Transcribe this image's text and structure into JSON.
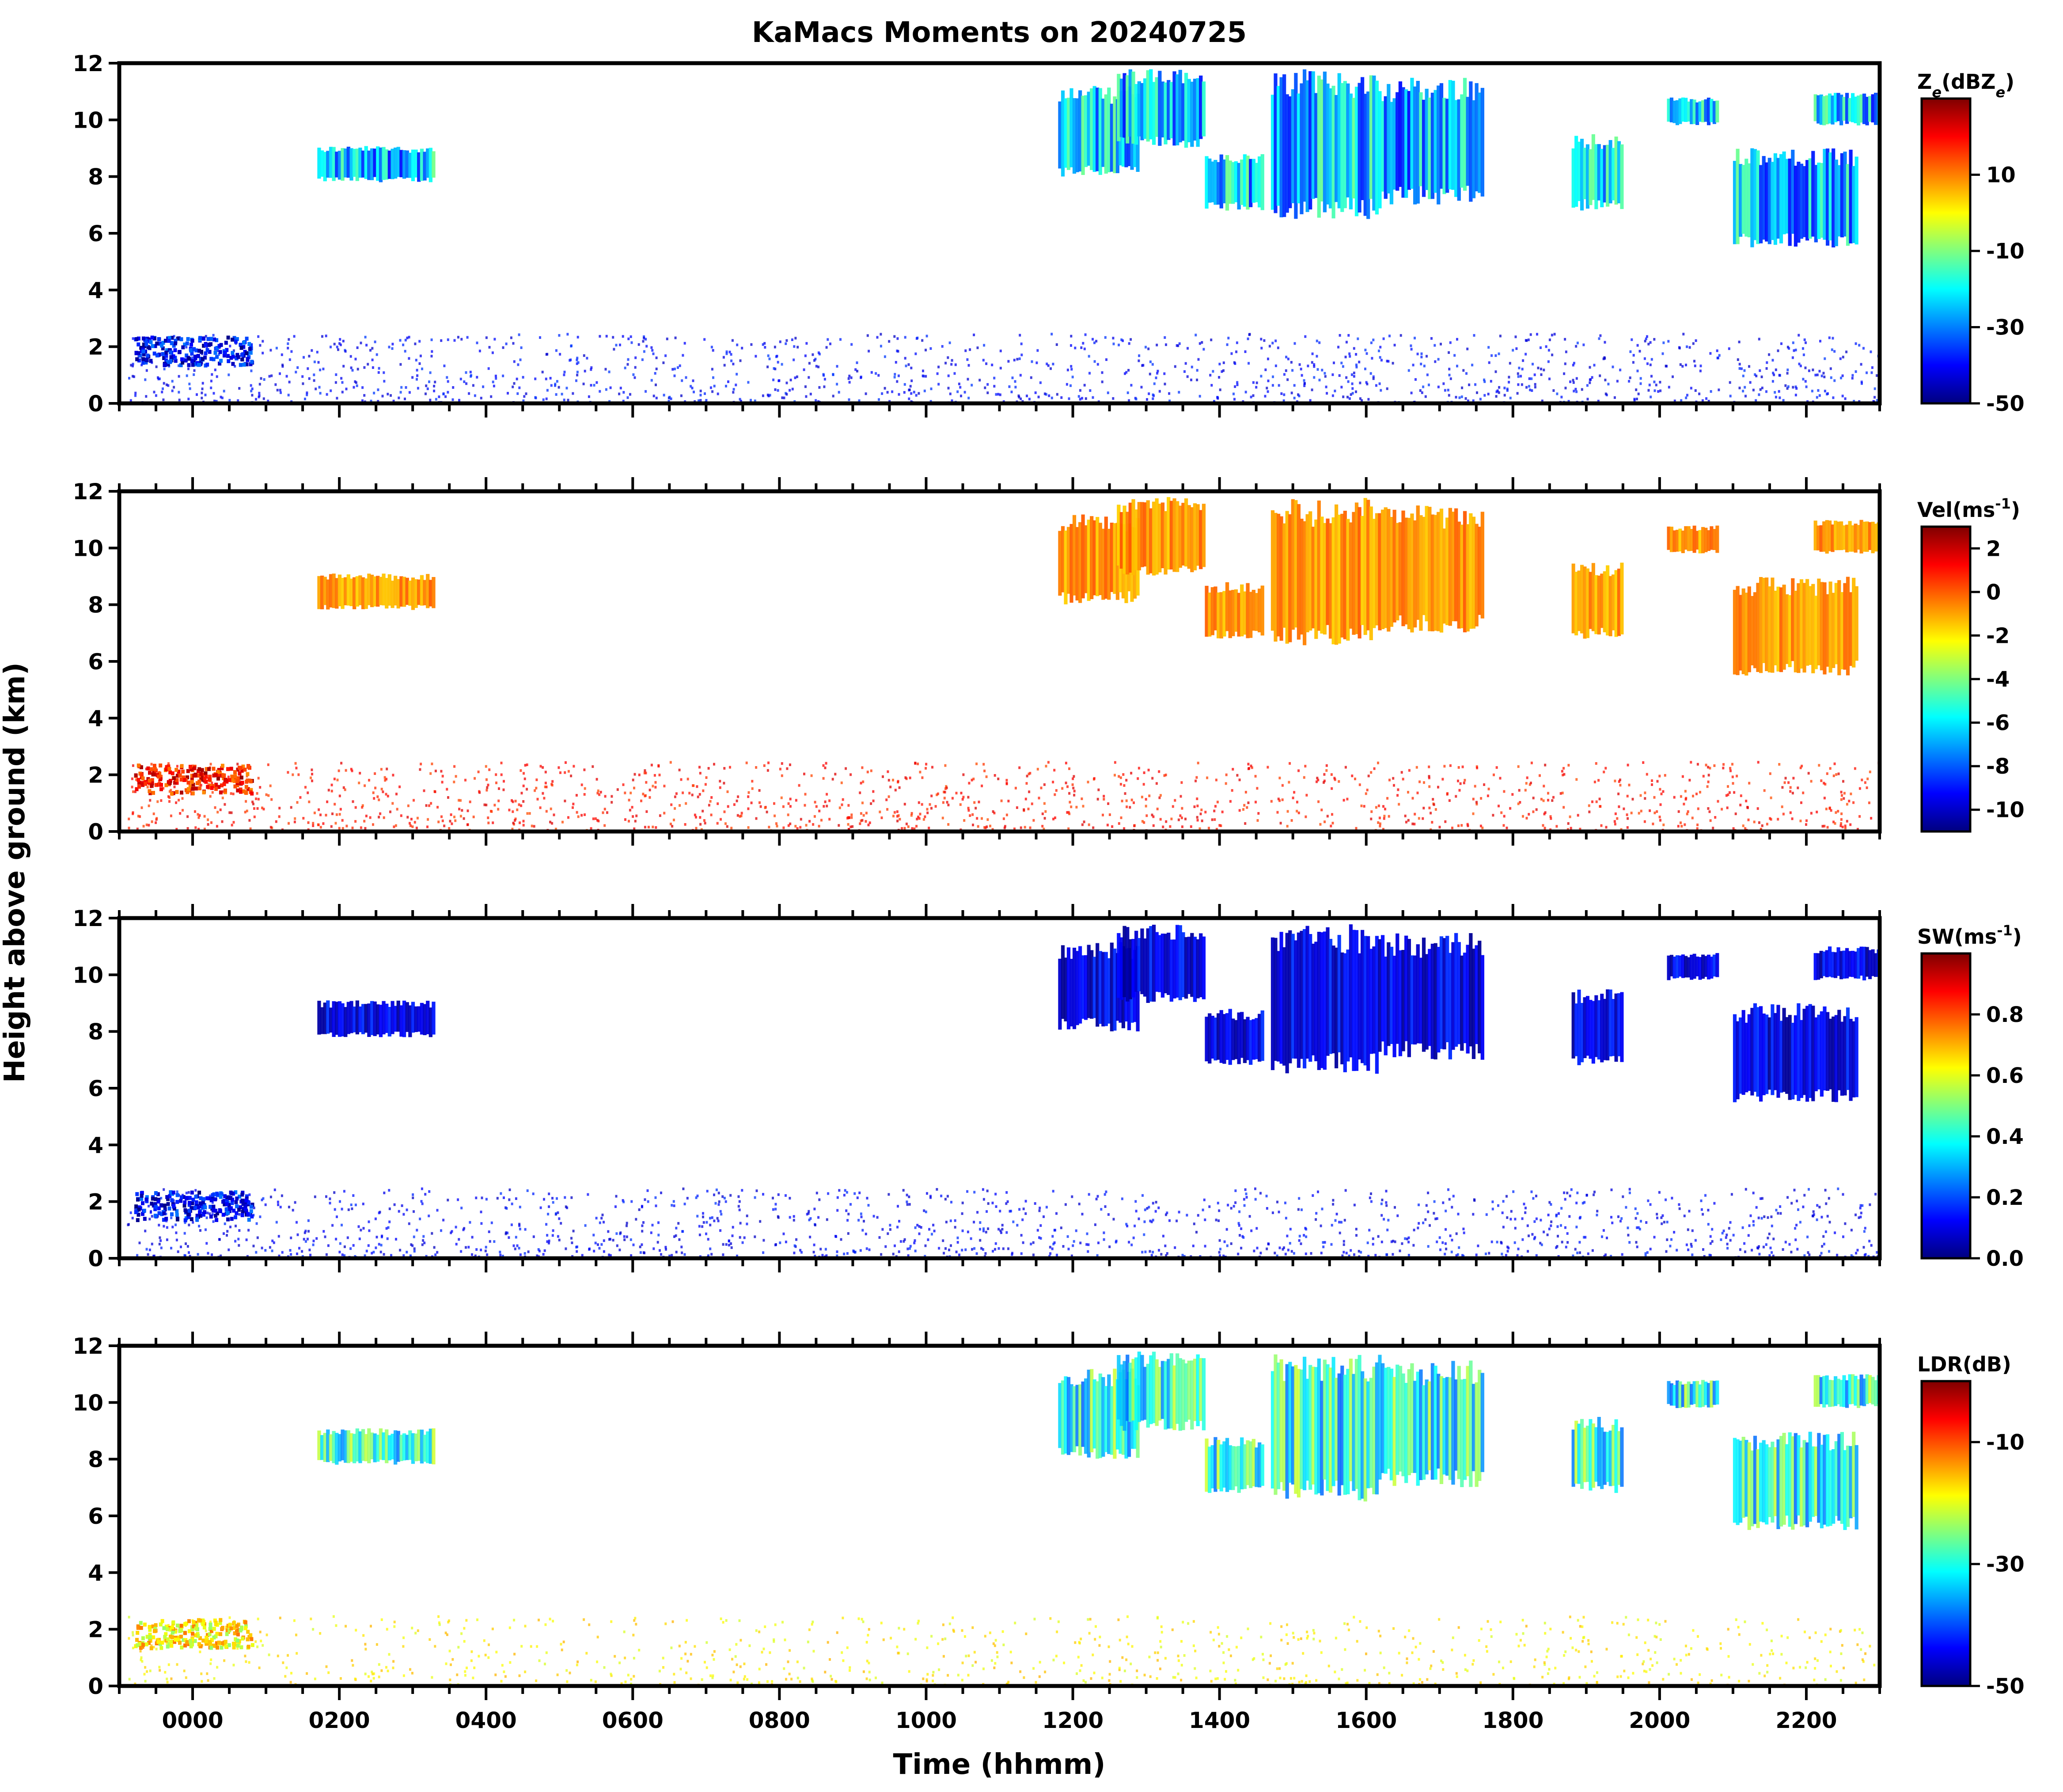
{
  "chart_data": {
    "type": "heatmap",
    "title": "KaMacs Moments on 20240725",
    "xlabel": "Time (hhmm)",
    "ylabel": "Height above ground (km)",
    "xlim": [
      -100,
      2300
    ],
    "x_ticks": [
      0,
      200,
      400,
      600,
      800,
      1000,
      1200,
      1400,
      1600,
      1800,
      2000,
      2200
    ],
    "x_tick_labels": [
      "0000",
      "0200",
      "0400",
      "0600",
      "0800",
      "1000",
      "1200",
      "1400",
      "1600",
      "1800",
      "2000",
      "2200"
    ],
    "ylim": [
      0,
      12
    ],
    "y_ticks": [
      0,
      2,
      4,
      6,
      8,
      10,
      12
    ],
    "y_tick_labels": [
      "0",
      "2",
      "4",
      "6",
      "8",
      "10",
      "12"
    ],
    "colormap": [
      "#00007f",
      "#0000ff",
      "#007fff",
      "#00ffff",
      "#7fff7f",
      "#ffff00",
      "#ff7f00",
      "#ff0000",
      "#7f0000"
    ],
    "cloud_regions": [
      {
        "t0": 170,
        "t1": 330,
        "h0": 7.8,
        "h1": 9.1
      },
      {
        "t0": 1180,
        "t1": 1290,
        "h0": 8.0,
        "h1": 11.2
      },
      {
        "t0": 1260,
        "t1": 1380,
        "h0": 9.0,
        "h1": 11.8
      },
      {
        "t0": 1380,
        "t1": 1460,
        "h0": 6.8,
        "h1": 8.8
      },
      {
        "t0": 1470,
        "t1": 1620,
        "h0": 6.5,
        "h1": 11.8
      },
      {
        "t0": 1620,
        "t1": 1760,
        "h0": 7.0,
        "h1": 11.5
      },
      {
        "t0": 1880,
        "t1": 1950,
        "h0": 6.8,
        "h1": 9.5
      },
      {
        "t0": 2010,
        "t1": 2080,
        "h0": 9.8,
        "h1": 10.8
      },
      {
        "t0": 2100,
        "t1": 2270,
        "h0": 5.5,
        "h1": 9.0
      },
      {
        "t0": 2210,
        "t1": 2300,
        "h0": 9.8,
        "h1": 11.0
      }
    ],
    "low_cloud_band": {
      "t0": -90,
      "t1": 2300,
      "h0": 0.0,
      "h1": 2.5
    },
    "panels": [
      {
        "name": "Ze",
        "colorbar_label": "Z_e(dBZ_e)",
        "colorbar_range": [
          -50,
          30
        ],
        "colorbar_ticks": [
          -50,
          -30,
          -10,
          10
        ],
        "colorbar_tick_labels": [
          "-50",
          "-30",
          "-10",
          "10"
        ],
        "upper_cloud_value": -25,
        "low_level_value": -40
      },
      {
        "name": "Vel",
        "colorbar_label": "Vel(ms^-1)",
        "colorbar_range": [
          -11,
          3
        ],
        "colorbar_ticks": [
          -10,
          -8,
          -6,
          -4,
          -2,
          0,
          2
        ],
        "colorbar_tick_labels": [
          "-10",
          "-8",
          "-6",
          "-4",
          "-2",
          "0",
          "2"
        ],
        "upper_cloud_value": -0.8,
        "low_level_value": 1.0
      },
      {
        "name": "SW",
        "colorbar_label": "SW(ms^-1)",
        "colorbar_range": [
          0,
          1
        ],
        "colorbar_ticks": [
          0,
          0.2,
          0.4,
          0.6,
          0.8
        ],
        "colorbar_tick_labels": [
          "0.0",
          "0.2",
          "0.4",
          "0.6",
          "0.8"
        ],
        "upper_cloud_value": 0.1,
        "low_level_value": 0.12
      },
      {
        "name": "LDR",
        "colorbar_label": "LDR(dB)",
        "colorbar_range": [
          -50,
          0
        ],
        "colorbar_ticks": [
          -50,
          -30,
          -10
        ],
        "colorbar_tick_labels": [
          "-50",
          "-30",
          "-10"
        ],
        "upper_cloud_value": -30,
        "low_level_value": -18
      }
    ]
  }
}
